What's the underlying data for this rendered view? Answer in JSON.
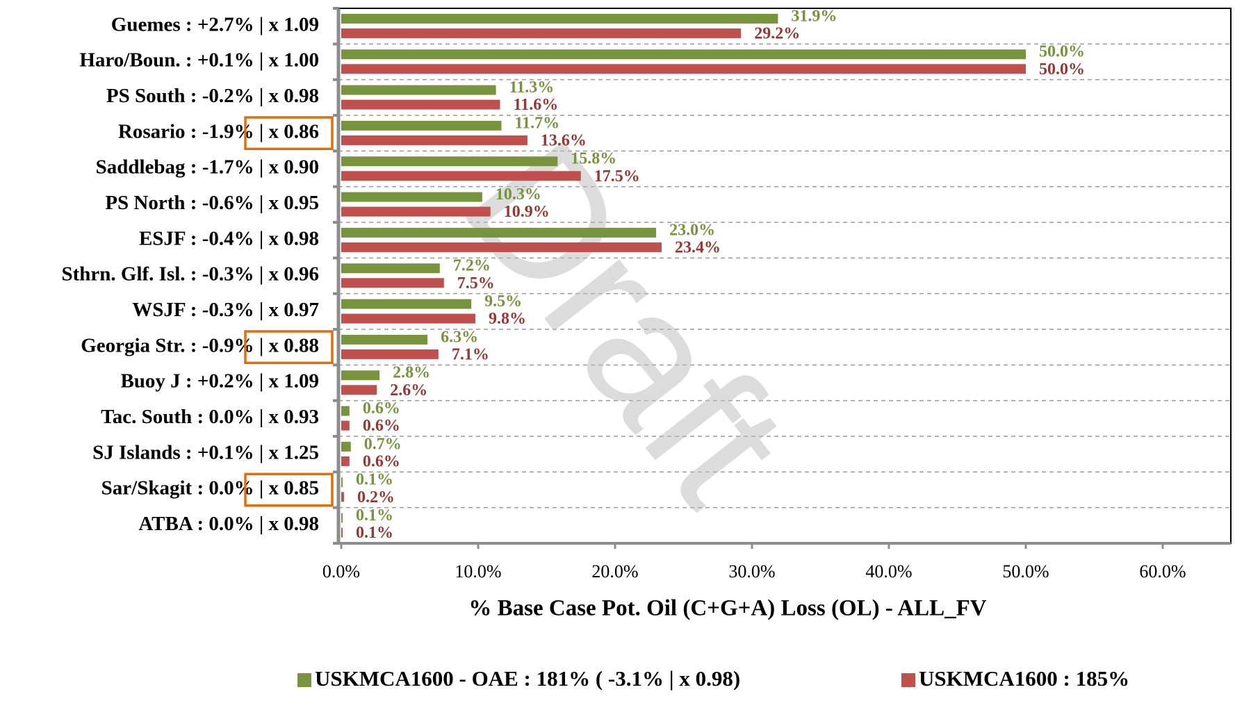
{
  "chart_data": {
    "type": "hbar",
    "watermark": "Draft",
    "x_label": "% Base Case Pot. Oil (C+G+A) Loss (OL) - ALL_FV",
    "categories": [
      "Guemes : +2.7% |  x 1.09",
      "Haro/Boun. : +0.1% |  x 1.00",
      "PS South : -0.2% |  x 0.98",
      "Rosario : -1.9% |  x 0.86",
      "Saddlebag : -1.7% |  x 0.90",
      "PS North : -0.6% |  x 0.95",
      "ESJF : -0.4% |  x 0.98",
      "Sthrn. Glf. Isl. : -0.3% |  x 0.96",
      "WSJF : -0.3% |  x 0.97",
      "Georgia Str. : -0.9% |  x 0.88",
      "Buoy J : +0.2% |  x 1.09",
      "Tac. South : 0.0% |  x 0.93",
      "SJ Islands : +0.1% |  x 1.25",
      "Sar/Skagit : 0.0% |  x 0.85",
      "ATBA : 0.0% |  x 0.98"
    ],
    "boxed": [
      false,
      false,
      false,
      true,
      false,
      false,
      false,
      false,
      false,
      true,
      false,
      false,
      false,
      true,
      false
    ],
    "box_color": "#e36c0a",
    "series": [
      {
        "name": "USKMCA1600 - OAE : 181% ( -3.1% |  x 0.98)",
        "color": "#77933c",
        "label_color": "#77933c",
        "values": [
          31.9,
          50.0,
          11.3,
          11.7,
          15.8,
          10.3,
          23.0,
          7.2,
          9.5,
          6.3,
          2.8,
          0.6,
          0.7,
          0.1,
          0.1
        ],
        "value_labels": [
          "31.9%",
          "50.0%",
          "11.3%",
          "11.7%",
          "15.8%",
          "10.3%",
          "23.0%",
          "7.2%",
          "9.5%",
          "6.3%",
          "2.8%",
          "0.6%",
          "0.7%",
          "0.1%",
          "0.1%"
        ]
      },
      {
        "name": "USKMCA1600 : 185%",
        "color": "#c0504d",
        "label_color": "#953735",
        "values": [
          29.2,
          50.0,
          11.6,
          13.6,
          17.5,
          10.9,
          23.4,
          7.5,
          9.8,
          7.1,
          2.6,
          0.6,
          0.6,
          0.2,
          0.1
        ],
        "value_labels": [
          "29.2%",
          "50.0%",
          "11.6%",
          "13.6%",
          "17.5%",
          "10.9%",
          "23.4%",
          "7.5%",
          "9.8%",
          "7.1%",
          "2.6%",
          "0.6%",
          "0.6%",
          "0.2%",
          "0.1%"
        ]
      }
    ],
    "xlim": [
      0,
      65
    ],
    "xticks": [
      {
        "value": 0,
        "label": "0.0%"
      },
      {
        "value": 10,
        "label": "10.0%"
      },
      {
        "value": 20,
        "label": "20.0%"
      },
      {
        "value": 30,
        "label": "30.0%"
      },
      {
        "value": 40,
        "label": "40.0%"
      },
      {
        "value": 50,
        "label": "50.0%"
      },
      {
        "value": 60,
        "label": "60.0%"
      }
    ]
  }
}
